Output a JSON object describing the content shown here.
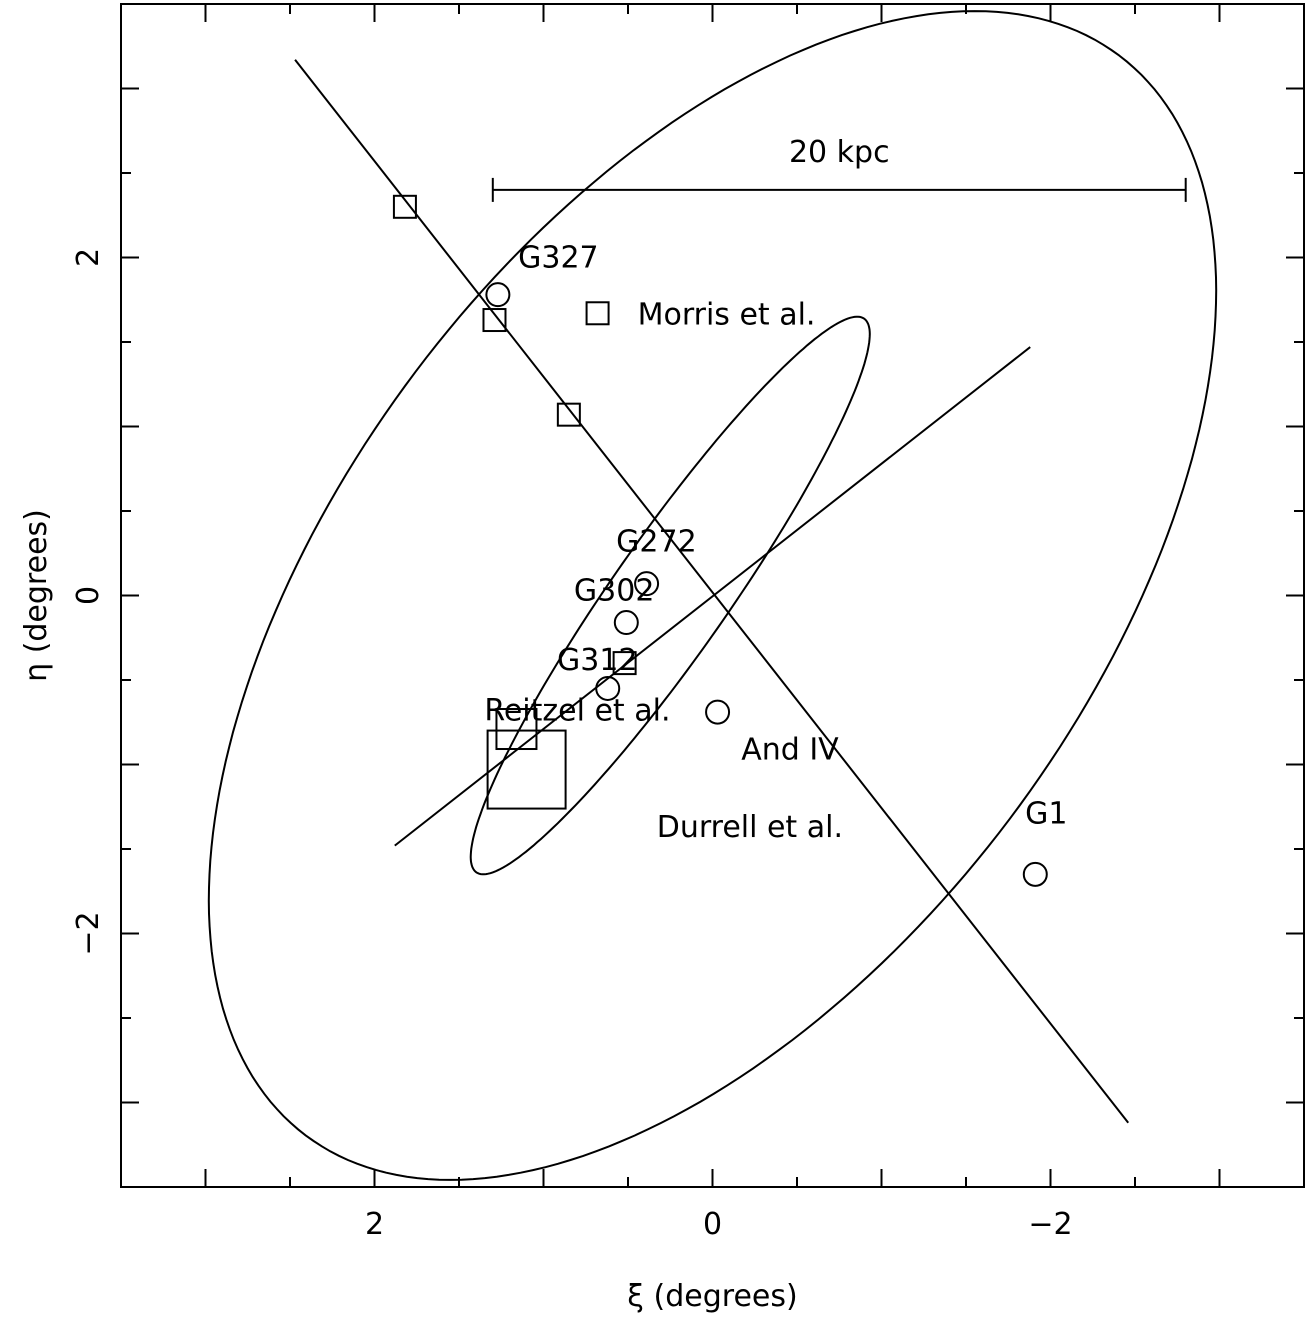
{
  "chart_data": {
    "type": "scatter",
    "xlabel": "ξ (degrees)",
    "ylabel": "η (degrees)",
    "xlim": [
      3.5,
      -3.5
    ],
    "ylim": [
      -3.5,
      3.5
    ],
    "xticks_labeled": [
      2,
      0,
      -2
    ],
    "yticks_labeled": [
      2,
      0,
      -2
    ],
    "x_tick_labels": [
      "2",
      "0",
      "−2"
    ],
    "y_tick_labels": [
      "2",
      "0",
      "−2"
    ],
    "minor_tick_step": 0.5,
    "grid": false,
    "scale_bar": {
      "label": "20 kpc",
      "x_from": 1.3,
      "x_to": -2.8,
      "y": 2.4
    },
    "ellipses": [
      {
        "name": "outer",
        "center": [
          0.0,
          0.0
        ],
        "semi_major": 4.0,
        "semi_minor": 2.2,
        "major_axis_direction_deg": 127
      },
      {
        "name": "inner",
        "center": [
          0.25,
          0.0
        ],
        "semi_major": 2.0,
        "semi_minor": 0.34,
        "major_axis_direction_deg": 125
      }
    ],
    "axis_lines": [
      {
        "name": "major-axis",
        "from": [
          2.47,
          3.17
        ],
        "to": [
          -2.46,
          -3.12
        ]
      },
      {
        "name": "minor-axis",
        "from": [
          1.88,
          -1.48
        ],
        "to": [
          -1.88,
          1.47
        ]
      }
    ],
    "squares": [
      {
        "x": 1.82,
        "y": 2.3,
        "size": "small"
      },
      {
        "x": 1.29,
        "y": 1.63,
        "size": "small"
      },
      {
        "x": 0.85,
        "y": 1.07,
        "size": "small"
      },
      {
        "x": 0.52,
        "y": -0.4,
        "size": "small"
      },
      {
        "x": 1.16,
        "y": -0.79,
        "size": "medium"
      },
      {
        "x": 1.1,
        "y": -1.03,
        "size": "large"
      }
    ],
    "circles": [
      {
        "name": "G327",
        "x": 1.27,
        "y": 1.78
      },
      {
        "name": "G272",
        "x": 0.39,
        "y": 0.07
      },
      {
        "name": "G302",
        "x": 0.51,
        "y": -0.16
      },
      {
        "name": "G312",
        "x": 0.62,
        "y": -0.55
      },
      {
        "name": "And IV",
        "x": -0.03,
        "y": -0.69
      },
      {
        "name": "G1",
        "x": -1.91,
        "y": -1.65
      }
    ],
    "legend": {
      "label": "Morris et al.",
      "marker": "square",
      "x": 0.68,
      "y": 1.67
    },
    "annotations": [
      {
        "text": "G327",
        "x": 1.15,
        "y": 1.94
      },
      {
        "text": "G272",
        "x": 0.57,
        "y": 0.26
      },
      {
        "text": "G302",
        "x": 0.82,
        "y": -0.03
      },
      {
        "text": "G312",
        "x": 0.92,
        "y": -0.44
      },
      {
        "text": "Reitzel et al.",
        "x": 1.35,
        "y": -0.74
      },
      {
        "text": "And IV",
        "x": -0.17,
        "y": -0.97
      },
      {
        "text": "Durrell et al.",
        "x": 0.33,
        "y": -1.43
      },
      {
        "text": "G1",
        "x": -1.85,
        "y": -1.35
      }
    ]
  }
}
